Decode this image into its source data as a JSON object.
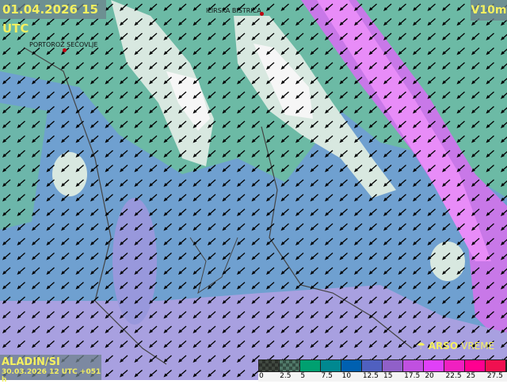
{
  "header": {
    "datetime": "01.04.2026 15 UTC",
    "parameter": "V10m"
  },
  "cities": [
    {
      "name": "ILIRSKA BISTRICA"
    },
    {
      "name": "PORTOROŽ SEČOVLJE"
    }
  ],
  "footer": {
    "model": "ALADIN/SI",
    "run": "30.03.2026 12 UTC +051 h",
    "logo_bold": "ARSO",
    "logo_light": "VREME"
  },
  "legend": {
    "labels": [
      "0",
      "2.5",
      "5",
      "7.5",
      "10",
      "12.5",
      "15",
      "17.5",
      "20",
      "22.5",
      "25",
      "27.5"
    ],
    "colors": [
      "#404840",
      "#507868",
      "#00a070",
      "#008890",
      "#0060b0",
      "#5060c0",
      "#9060c8",
      "#c050e0",
      "#e040f8",
      "#f020c0",
      "#ff0090",
      "#f01050"
    ]
  },
  "wind_direction": "north-east (arrows pointing south-west)"
}
